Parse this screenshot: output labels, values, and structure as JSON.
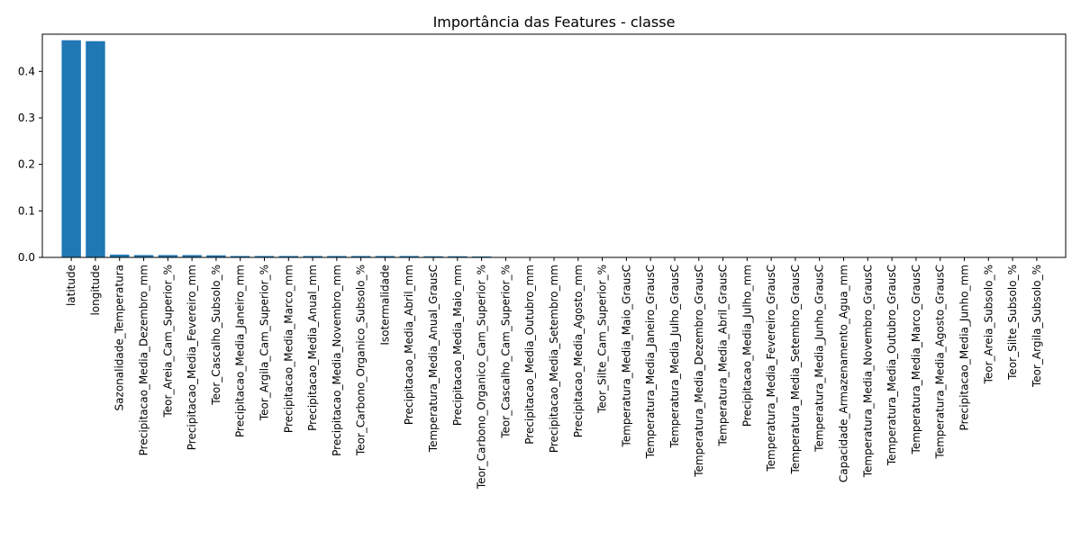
{
  "chart_data": {
    "type": "bar",
    "title": "Importância das Features - classe",
    "xlabel": "",
    "ylabel": "",
    "ylim": [
      0,
      0.48
    ],
    "yticks": [
      0.0,
      0.1,
      0.2,
      0.3,
      0.4
    ],
    "ytick_labels": [
      "0.0",
      "0.1",
      "0.2",
      "0.3",
      "0.4"
    ],
    "grid": false,
    "bar_color": "#1f77b4",
    "categories": [
      "latitude",
      "longitude",
      "Sazonalidade_Temperatura",
      "Precipitacao_Media_Dezembro_mm",
      "Teor_Areia_Cam_Superior_%",
      "Precipitacao_Media_Fevereiro_mm",
      "Teor_Cascalho_Subsolo_%",
      "Precipitacao_Media_Janeiro_mm",
      "Teor_Argila_Cam_Superior_%",
      "Precipitacao_Media_Marco_mm",
      "Precipitacao_Media_Anual_mm",
      "Precipitacao_Media_Novembro_mm",
      "Teor_Carbono_Organico_Subsolo_%",
      "Isotermalidade",
      "Precipitacao_Media_Abril_mm",
      "Temperatura_Media_Anual_GrausC",
      "Precipitacao_Media_Maio_mm",
      "Teor_Carbono_Organico_Cam_Superior_%",
      "Teor_Cascalho_Cam_Superior_%",
      "Precipitacao_Media_Outubro_mm",
      "Precipitacao_Media_Setembro_mm",
      "Precipitacao_Media_Agosto_mm",
      "Teor_Silte_Cam_Superior_%",
      "Temperatura_Media_Maio_GrausC",
      "Temperatura_Media_Janeiro_GrausC",
      "Temperatura_Media_Julho_GrausC",
      "Temperatura_Media_Dezembro_GrausC",
      "Temperatura_Media_Abril_GrausC",
      "Precipitacao_Media_Julho_mm",
      "Temperatura_Media_Fevereiro_GrausC",
      "Temperatura_Media_Setembro_GrausC",
      "Temperatura_Media_Junho_GrausC",
      "Capacidade_Armazenamento_Agua_mm",
      "Temperatura_Media_Novembro_GrausC",
      "Temperatura_Media_Outubro_GrausC",
      "Temperatura_Media_Marco_GrausC",
      "Temperatura_Media_Agosto_GrausC",
      "Precipitacao_Media_Junho_mm",
      "Teor_Areia_Subsolo_%",
      "Teor_Silte_Subsolo_%",
      "Teor_Argila_Subsolo_%"
    ],
    "values": [
      0.467,
      0.465,
      0.006,
      0.005,
      0.005,
      0.005,
      0.0045,
      0.003,
      0.003,
      0.003,
      0.003,
      0.003,
      0.003,
      0.003,
      0.003,
      0.0025,
      0.0025,
      0.002,
      0.0005,
      0.0003,
      0.0002,
      0.0002,
      0.0001,
      0.0001,
      0.0001,
      0.0001,
      0.0001,
      0.0001,
      0.0001,
      0.0001,
      0.0001,
      0.0001,
      0.0001,
      0.0001,
      0.0001,
      0.0001,
      0.0001,
      0.0001,
      0.0,
      0.0,
      0.0
    ]
  }
}
